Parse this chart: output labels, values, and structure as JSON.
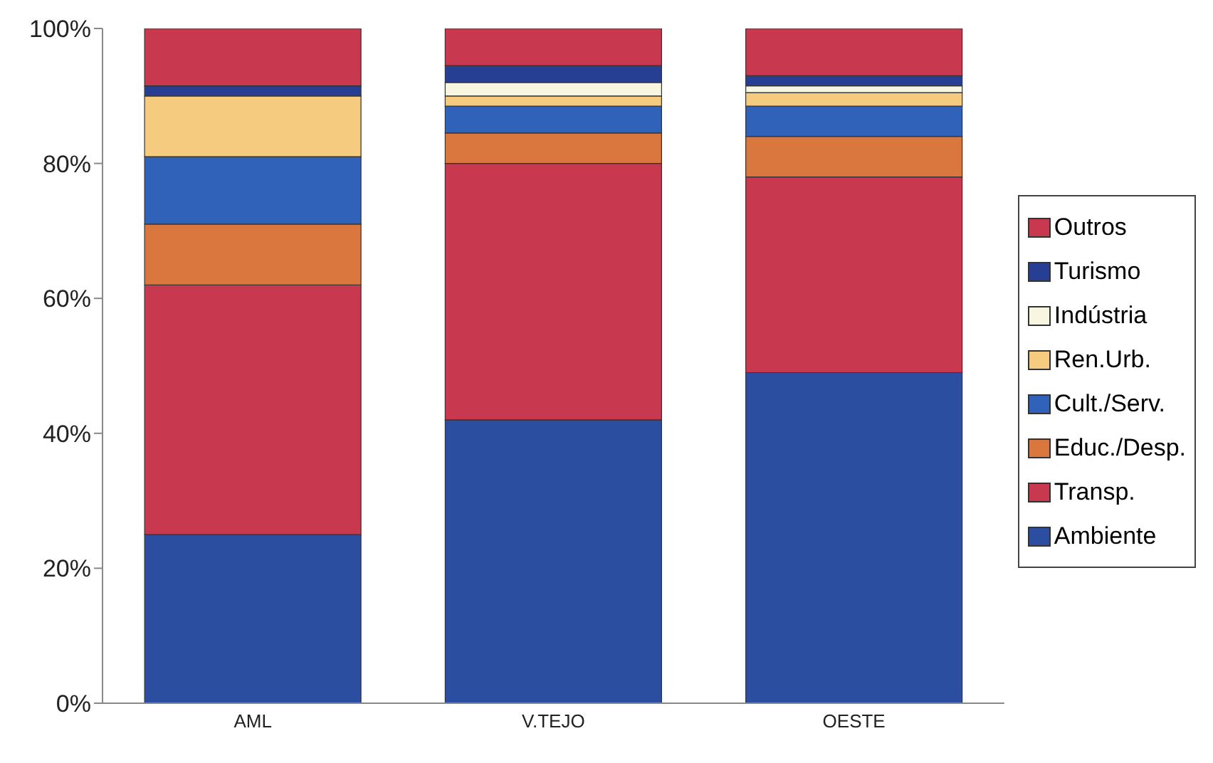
{
  "chart_data": {
    "type": "bar",
    "stacked": true,
    "categories": [
      "AML",
      "V.TEJO",
      "OESTE"
    ],
    "series": [
      {
        "name": "Ambiente",
        "color": "#2b4ea0",
        "values": [
          25,
          42,
          49
        ]
      },
      {
        "name": "Transp.",
        "color": "#c8394f",
        "values": [
          37,
          38,
          29
        ]
      },
      {
        "name": "Educ./Desp.",
        "color": "#d9773e",
        "values": [
          9,
          4.5,
          6
        ]
      },
      {
        "name": "Cult./Serv.",
        "color": "#2f62b8",
        "values": [
          10,
          4,
          4.5
        ]
      },
      {
        "name": "Ren.Urb.",
        "color": "#f5cb80",
        "values": [
          9,
          1.5,
          2
        ]
      },
      {
        "name": "Indústria",
        "color": "#f8f6e0",
        "values": [
          0,
          2,
          1
        ]
      },
      {
        "name": "Turismo",
        "color": "#263f93",
        "values": [
          1.5,
          2.5,
          1.5
        ]
      },
      {
        "name": "Outros",
        "color": "#c8394f",
        "values": [
          8.5,
          5.5,
          7
        ]
      }
    ],
    "ylim": [
      0,
      100
    ],
    "yticks": [
      {
        "value": 0,
        "label": "0%"
      },
      {
        "value": 20,
        "label": "20%"
      },
      {
        "value": 40,
        "label": "40%"
      },
      {
        "value": 60,
        "label": "60%"
      },
      {
        "value": 80,
        "label": "80%"
      },
      {
        "value": 100,
        "label": "100%"
      }
    ],
    "grid": false,
    "legend": "right"
  }
}
